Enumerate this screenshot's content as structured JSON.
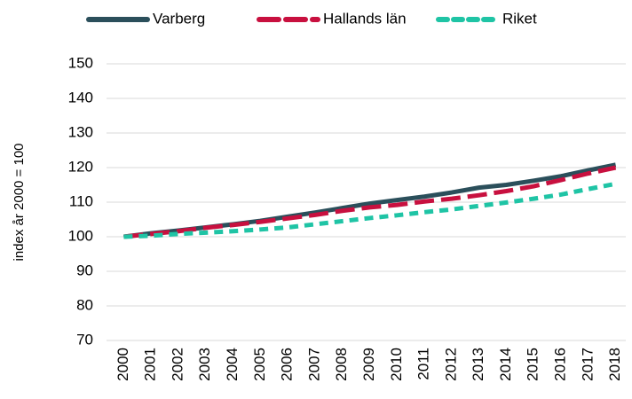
{
  "chart_data": {
    "type": "line",
    "y_label": "index år 2000 = 100",
    "categories": [
      "2000",
      "2001",
      "2002",
      "2003",
      "2004",
      "2005",
      "2006",
      "2007",
      "2008",
      "2009",
      "2010",
      "2011",
      "2012",
      "2013",
      "2014",
      "2015",
      "2016",
      "2017",
      "2018"
    ],
    "series": [
      {
        "name": "Varberg",
        "color": "#2b4f5b",
        "dash": "solid",
        "values": [
          100,
          101,
          101.8,
          102.7,
          103.6,
          104.6,
          105.8,
          107,
          108.3,
          109.6,
          110.6,
          111.6,
          112.8,
          114.2,
          115,
          116.2,
          117.5,
          119.2,
          120.8
        ]
      },
      {
        "name": "Hallands län",
        "color": "#c8103f",
        "dash": "long",
        "values": [
          100,
          100.8,
          101.6,
          102.6,
          103.4,
          104.3,
          105.3,
          106.3,
          107.5,
          108.5,
          109.2,
          110.2,
          111,
          112,
          113.2,
          114.6,
          116.4,
          118.3,
          120
        ]
      },
      {
        "name": "Riket",
        "color": "#1fc4a5",
        "dash": "short",
        "values": [
          100,
          100.3,
          100.8,
          101.2,
          101.6,
          102.1,
          102.7,
          103.6,
          104.5,
          105.4,
          106.2,
          107.1,
          107.9,
          108.9,
          109.9,
          111,
          112.2,
          113.8,
          115.3
        ]
      }
    ],
    "ylim": [
      70,
      150
    ],
    "yticks": [
      70,
      80,
      90,
      100,
      110,
      120,
      130,
      140,
      150
    ],
    "grid": true,
    "legend": "top"
  }
}
